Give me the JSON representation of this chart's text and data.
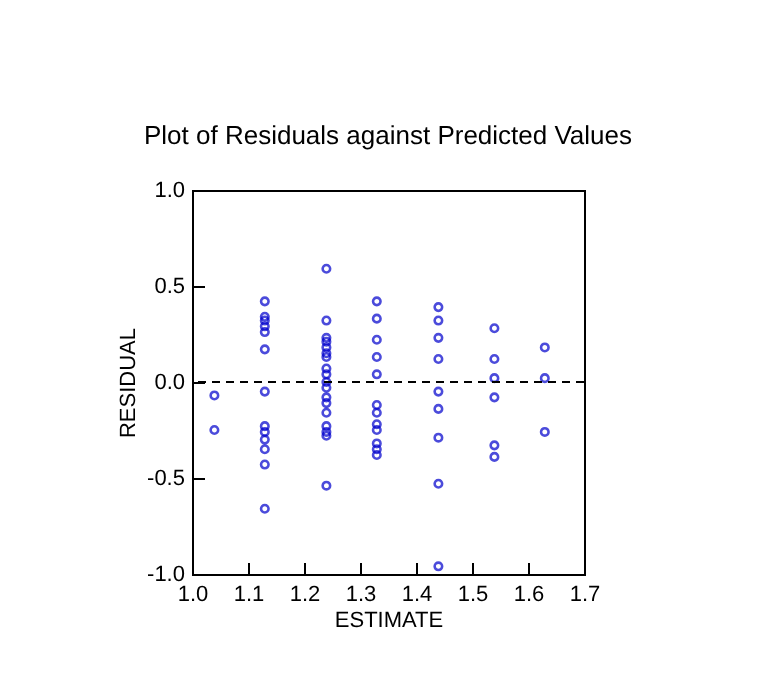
{
  "chart_data": {
    "type": "scatter",
    "title": "Plot of Residuals against Predicted Values",
    "xlabel": "ESTIMATE",
    "ylabel": "RESIDUAL",
    "x": [
      1.04,
      1.04,
      1.13,
      1.13,
      1.13,
      1.13,
      1.13,
      1.13,
      1.13,
      1.13,
      1.13,
      1.13,
      1.13,
      1.13,
      1.13,
      1.24,
      1.24,
      1.24,
      1.24,
      1.24,
      1.24,
      1.24,
      1.24,
      1.24,
      1.24,
      1.24,
      1.24,
      1.24,
      1.24,
      1.24,
      1.24,
      1.24,
      1.24,
      1.33,
      1.33,
      1.33,
      1.33,
      1.33,
      1.33,
      1.33,
      1.33,
      1.33,
      1.33,
      1.33,
      1.33,
      1.44,
      1.44,
      1.44,
      1.44,
      1.44,
      1.44,
      1.44,
      1.44,
      1.44,
      1.54,
      1.54,
      1.54,
      1.54,
      1.54,
      1.54,
      1.63,
      1.63,
      1.63
    ],
    "values": [
      -0.07,
      -0.25,
      0.42,
      0.34,
      0.32,
      0.29,
      0.26,
      0.17,
      -0.05,
      -0.23,
      -0.26,
      -0.3,
      -0.35,
      -0.43,
      -0.66,
      0.59,
      0.32,
      0.23,
      0.21,
      0.18,
      0.15,
      0.13,
      0.07,
      0.04,
      0.0,
      -0.03,
      -0.08,
      -0.11,
      -0.16,
      -0.23,
      -0.26,
      -0.28,
      -0.54,
      0.42,
      0.33,
      0.22,
      0.13,
      0.04,
      -0.12,
      -0.16,
      -0.22,
      -0.25,
      -0.32,
      -0.35,
      -0.38,
      0.39,
      0.32,
      0.23,
      0.12,
      -0.05,
      -0.14,
      -0.29,
      -0.53,
      -0.96,
      0.28,
      0.12,
      0.02,
      -0.08,
      -0.33,
      -0.39,
      0.18,
      0.02,
      -0.26
    ],
    "color": "#0000cc",
    "marker": "circle",
    "xlim": [
      1.0,
      1.7
    ],
    "xticks": [
      {
        "value": 1.0,
        "label": "1.0"
      },
      1.1,
      1.2,
      1.3,
      1.4,
      1.5,
      1.6,
      1.7
    ],
    "ylim": [
      -1.0,
      1.0
    ],
    "yticks": [
      {
        "value": -1.0,
        "label": "-1.0"
      },
      -0.5,
      {
        "value": 0,
        "label": "0.0"
      },
      0.5,
      {
        "value": 1.0,
        "label": "1.0"
      }
    ],
    "ref_lines": [
      {
        "axis": "y",
        "value": 0,
        "line_style": "dashed",
        "color": "#000000"
      }
    ],
    "grid": false
  }
}
